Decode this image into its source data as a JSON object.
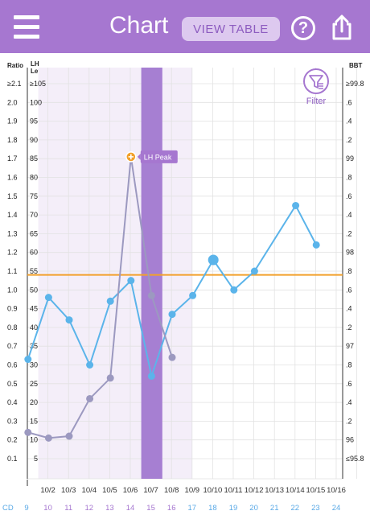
{
  "header": {
    "title": "Chart",
    "view_table_label": "VIEW TABLE",
    "help_label": "?",
    "colors": {
      "bar": "#a677d0",
      "button_bg": "#ddc9ef",
      "button_text": "#8d5cc0"
    }
  },
  "axes": {
    "ratio_header": "Ratio",
    "lh_header": "LH Level",
    "bbt_header": "BBT",
    "cd_label": "CD"
  },
  "filter": {
    "label": "Filter",
    "icon": "filter-icon"
  },
  "chart_data": {
    "type": "line",
    "ratio_ticks": [
      "≥2.1",
      "2.0",
      "1.9",
      "1.8",
      "1.7",
      "1.6",
      "1.5",
      "1.4",
      "1.3",
      "1.2",
      "1.1",
      "1.0",
      "0.9",
      "0.8",
      "0.7",
      "0.6",
      "0.5",
      "0.4",
      "0.3",
      "0.2",
      "0.1"
    ],
    "lh_ticks": [
      "≥105",
      "100",
      "95",
      "90",
      "85",
      "80",
      "75",
      "70",
      "65",
      "60",
      "55",
      "50",
      "45",
      "40",
      "35",
      "30",
      "25",
      "20",
      "15",
      "10",
      "5"
    ],
    "bbt_ticks": [
      "≥99.8",
      ".6",
      ".4",
      ".2",
      "99",
      ".8",
      ".6",
      ".4",
      ".2",
      "98",
      ".8",
      ".6",
      ".4",
      ".2",
      "97",
      ".8",
      ".6",
      ".4",
      ".2",
      "96",
      "≤95.8"
    ],
    "dates": [
      "",
      "10/2",
      "10/3",
      "10/4",
      "10/5",
      "10/6",
      "10/7",
      "10/8",
      "10/9",
      "10/10",
      "10/11",
      "10/12",
      "10/13",
      "10/14",
      "10/15",
      "10/16"
    ],
    "cycle_days": [
      "9",
      "10",
      "11",
      "12",
      "13",
      "14",
      "15",
      "16",
      "17",
      "18",
      "19",
      "20",
      "21",
      "22",
      "23",
      "24"
    ],
    "cd_colors": [
      "#5aa9e6",
      "#a677d0",
      "#a677d0",
      "#a677d0",
      "#a677d0",
      "#a677d0",
      "#a677d0",
      "#a677d0",
      "#5aa9e6",
      "#5aa9e6",
      "#5aa9e6",
      "#5aa9e6",
      "#5aa9e6",
      "#5aa9e6",
      "#5aa9e6",
      "#5aa9e6"
    ],
    "fertile_window_days": [
      "10",
      "16"
    ],
    "peak_day": "15",
    "series": [
      {
        "color": "#5bb4ea",
        "values": [
          {
            "cd": "9",
            "v": 0.63
          },
          {
            "cd": "10",
            "v": 0.96
          },
          {
            "cd": "11",
            "v": 0.84
          },
          {
            "cd": "12",
            "v": 0.6
          },
          {
            "cd": "13",
            "v": 0.94
          },
          {
            "cd": "14",
            "v": 1.05
          },
          {
            "cd": "15",
            "v": 0.54
          },
          {
            "cd": "16",
            "v": 0.87
          },
          {
            "cd": "17",
            "v": 0.97
          },
          {
            "cd": "18",
            "v": 1.16
          },
          {
            "cd": "19",
            "v": 1.0
          },
          {
            "cd": "20",
            "v": 1.1
          },
          {
            "cd": "22",
            "v": 1.45
          },
          {
            "cd": "23",
            "v": 1.24
          }
        ]
      },
      {
        "color": "#9c99c0",
        "values": [
          {
            "cd": "9",
            "v": 0.24
          },
          {
            "cd": "10",
            "v": 0.21
          },
          {
            "cd": "11",
            "v": 0.22
          },
          {
            "cd": "12",
            "v": 0.42
          },
          {
            "cd": "13",
            "v": 0.53
          },
          {
            "cd": "14",
            "v": 1.71
          },
          {
            "cd": "15",
            "v": 0.97
          },
          {
            "cd": "16",
            "v": 0.64
          }
        ]
      }
    ],
    "threshold": {
      "value": 1.08,
      "color": "#f2a02a"
    },
    "annotation": {
      "label": "LH Peak",
      "cd": "14",
      "v": 1.71
    },
    "ylim": [
      0,
      2.2
    ]
  }
}
